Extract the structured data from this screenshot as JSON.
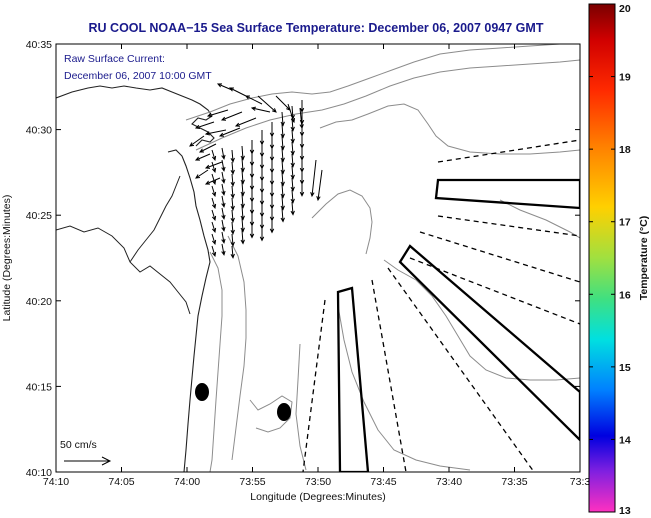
{
  "title": "RU COOL  NOAA−15  Sea Surface Temperature:  December 06, 2007 0947 GMT",
  "info": {
    "line1": "Raw Surface Current:",
    "line2": "December 06, 2007 10:00 GMT"
  },
  "axes": {
    "xlabel": "Longitude (Degrees:Minutes)",
    "ylabel": "Latitude (Degrees:Minutes)",
    "x_ticks": [
      "74:10",
      "74:05",
      "74:00",
      "73:55",
      "73:50",
      "73:45",
      "73:40",
      "73:35",
      "73:3"
    ],
    "y_ticks": [
      "40:35",
      "40:30",
      "40:25",
      "40:20",
      "40:15",
      "40:10"
    ]
  },
  "scale": {
    "label": "50 cm/s"
  },
  "colorbar": {
    "label": "Temperature (°C)",
    "ticks": [
      "20",
      "19",
      "18",
      "17",
      "16",
      "15",
      "14",
      "13"
    ],
    "range": [
      13,
      20
    ]
  },
  "colors": {
    "title": "#1a1a8c",
    "land": "#ffffff",
    "contour": "#8c8c8c",
    "vectors": "#000000"
  }
}
